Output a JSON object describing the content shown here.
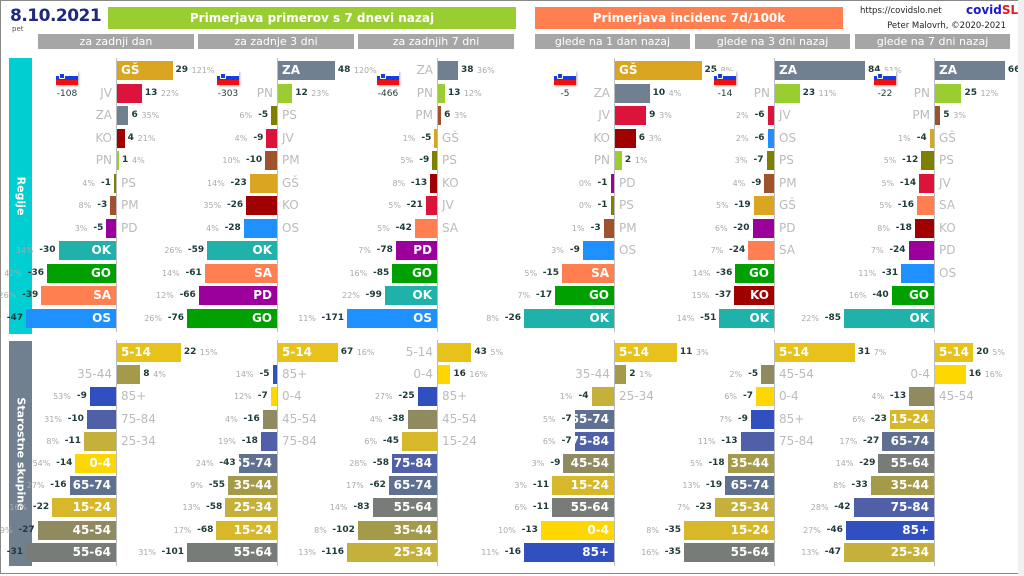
{
  "header": {
    "date": "8.10.2021",
    "weekday": "pet",
    "banner_cases": "Primerjava primerov s 7 dnevi nazaj",
    "banner_incidence": "Primerjava incidenc 7d/100k",
    "source_url": "https://covidslo.net",
    "brand_a": "covid",
    "brand_b": "SLO",
    "author": "Peter Malovrh, ©2020-2021"
  },
  "subheaders": [
    "za zadnji dan",
    "za zadnje 3 dni",
    "za zadnjih 7 dni",
    "glede na 1 dan nazaj",
    "glede na 3 dni nazaj",
    "glede na 7 dni nazaj"
  ],
  "sections": {
    "regions": "Regije",
    "ages": "Starostne skupine"
  },
  "colors": {
    "GŠ": "#daa520",
    "JV": "#dc143c",
    "ZA": "#708090",
    "KO": "#a00000",
    "PN": "#9acd32",
    "PS": "#808000",
    "PM": "#a0522d",
    "PD": "#9c009c",
    "OK": "#20b2aa",
    "GO": "#00a000",
    "SA": "#ff7f50",
    "OS": "#1e90ff",
    "5-14": "#e6c21a",
    "35-44": "#a39a4a",
    "85+": "#3050c0",
    "75-84": "#5060a8",
    "25-34": "#c4b03a",
    "0-4": "#ffd700",
    "65-74": "#607090",
    "15-24": "#d6b82a",
    "45-54": "#908a60",
    "55-64": "#787c78"
  },
  "chart_data": [
    {
      "type": "bar",
      "title": "Regije — za zadnji dan",
      "total": -108,
      "categories": [
        "GŠ",
        "JV",
        "ZA",
        "KO",
        "PN",
        "PS",
        "PM",
        "PD",
        "OK",
        "GO",
        "SA",
        "OS"
      ],
      "values": [
        29,
        13,
        6,
        4,
        1,
        -1,
        -3,
        -5,
        -30,
        -36,
        -39,
        -47
      ],
      "pct": [
        "121%",
        "22%",
        "35%",
        "21%",
        "4%",
        "4%",
        "8%",
        "3%",
        "34%",
        "42%",
        "26%",
        "16%"
      ],
      "scale": 47
    },
    {
      "type": "bar",
      "title": "Regije — za zadnje 3 dni",
      "total": -303,
      "categories": [
        "ZA",
        "PN",
        "PS",
        "JV",
        "PM",
        "GŠ",
        "KO",
        "OS",
        "OK",
        "SA",
        "PD",
        "GO"
      ],
      "values": [
        48,
        12,
        -5,
        -9,
        -10,
        -23,
        -26,
        -28,
        -59,
        -61,
        -66,
        -76
      ],
      "pct": [
        "120%",
        "23%",
        "6%",
        "4%",
        "10%",
        "14%",
        "35%",
        "4%",
        "26%",
        "14%",
        "12%",
        "26%"
      ],
      "scale": 76
    },
    {
      "type": "bar",
      "title": "Regije — za zadnjih 7 dni",
      "total": -466,
      "categories": [
        "ZA",
        "PN",
        "PM",
        "GŠ",
        "PS",
        "KO",
        "JV",
        "SA",
        "PD",
        "GO",
        "OK",
        "OS"
      ],
      "values": [
        38,
        13,
        6,
        -5,
        -9,
        -13,
        -21,
        -42,
        -78,
        -85,
        -99,
        -171
      ],
      "pct": [
        "36%",
        "12%",
        "3%",
        "1%",
        "5%",
        "8%",
        "5%",
        "5%",
        "7%",
        "16%",
        "22%",
        "11%"
      ],
      "scale": 171
    },
    {
      "type": "bar",
      "title": "Regije — glede na 1 dan nazaj",
      "total": -5,
      "categories": [
        "GŠ",
        "ZA",
        "JV",
        "KO",
        "PN",
        "PD",
        "PS",
        "PM",
        "OS",
        "SA",
        "GO",
        "OK"
      ],
      "values": [
        25,
        10,
        9,
        6,
        2,
        -1,
        -1,
        -3,
        -9,
        -15,
        -17,
        -26
      ],
      "pct": [
        "8%",
        "4%",
        "3%",
        "3%",
        "1%",
        "0%",
        "0%",
        "1%",
        "3%",
        "5%",
        "7%",
        "8%"
      ],
      "scale": 26
    },
    {
      "type": "bar",
      "title": "Regije — glede na 3 dni nazaj",
      "total": -14,
      "categories": [
        "ZA",
        "PN",
        "JV",
        "OS",
        "PS",
        "PM",
        "GŠ",
        "PD",
        "SA",
        "GO",
        "KO",
        "OK"
      ],
      "values": [
        84,
        23,
        -6,
        -6,
        -7,
        -9,
        -19,
        -20,
        -24,
        -36,
        -37,
        -51
      ],
      "pct": [
        "51%",
        "11%",
        "2%",
        "2%",
        "3%",
        "4%",
        "5%",
        "6%",
        "7%",
        "14%",
        "15%",
        "14%"
      ],
      "scale": 84
    },
    {
      "type": "bar",
      "title": "Regije — glede na 7 dni nazaj",
      "total": -22,
      "categories": [
        "ZA",
        "PN",
        "PM",
        "GŠ",
        "PS",
        "JV",
        "SA",
        "KO",
        "PD",
        "OS",
        "GO",
        "OK"
      ],
      "values": [
        66,
        25,
        5,
        -4,
        -12,
        -14,
        -16,
        -18,
        -24,
        -31,
        -40,
        -85
      ],
      "pct": [
        "36%",
        "12%",
        "3%",
        "1%",
        "5%",
        "5%",
        "5%",
        "8%",
        "7%",
        "11%",
        "16%",
        "22%"
      ],
      "scale": 85
    },
    {
      "type": "bar",
      "title": "Starostne skupine — za zadnji dan",
      "categories": [
        "5-14",
        "35-44",
        "85+",
        "75-84",
        "25-34",
        "0-4",
        "65-74",
        "15-24",
        "45-54",
        "55-64"
      ],
      "values": [
        22,
        8,
        -9,
        -10,
        -11,
        -14,
        -16,
        -22,
        -27,
        -31
      ],
      "pct": [
        "15%",
        "4%",
        "53%",
        "31%",
        "8%",
        "54%",
        "27%",
        "16%",
        "19%",
        "27%"
      ],
      "scale": 31
    },
    {
      "type": "bar",
      "title": "Starostne skupine — za zadnje 3 dni",
      "categories": [
        "5-14",
        "85+",
        "0-4",
        "45-54",
        "75-84",
        "65-74",
        "35-44",
        "25-34",
        "15-24",
        "55-64"
      ],
      "values": [
        67,
        -5,
        -7,
        -16,
        -18,
        -43,
        -55,
        -58,
        -68,
        -101
      ],
      "pct": [
        "16%",
        "14%",
        "12%",
        "4%",
        "19%",
        "24%",
        "9%",
        "13%",
        "17%",
        "31%"
      ],
      "scale": 101
    },
    {
      "type": "bar",
      "title": "Starostne skupine — za zadnjih 7 dni",
      "categories": [
        "5-14",
        "0-4",
        "85+",
        "45-54",
        "15-24",
        "75-84",
        "65-74",
        "55-64",
        "35-44",
        "25-34"
      ],
      "values": [
        43,
        16,
        -25,
        -38,
        -45,
        -58,
        -62,
        -83,
        -102,
        -116
      ],
      "pct": [
        "5%",
        "16%",
        "27%",
        "4%",
        "6%",
        "28%",
        "17%",
        "14%",
        "8%",
        "13%"
      ],
      "scale": 116
    },
    {
      "type": "bar",
      "title": "Starostne skupine — glede na 1 dan nazaj",
      "categories": [
        "5-14",
        "35-44",
        "25-34",
        "65-74",
        "75-84",
        "45-54",
        "15-24",
        "55-64",
        "0-4",
        "85+"
      ],
      "values": [
        11,
        2,
        -4,
        -7,
        -7,
        -9,
        -11,
        -11,
        -13,
        -16
      ],
      "pct": [
        "3%",
        "1%",
        "1%",
        "5%",
        "6%",
        "3%",
        "3%",
        "6%",
        "10%",
        "11%"
      ],
      "scale": 16
    },
    {
      "type": "bar",
      "title": "Starostne skupine — glede na 3 dni nazaj",
      "categories": [
        "5-14",
        "45-54",
        "0-4",
        "85+",
        "75-84",
        "35-44",
        "65-74",
        "25-34",
        "15-24",
        "55-64"
      ],
      "values": [
        31,
        -5,
        -7,
        -9,
        -13,
        -18,
        -19,
        -23,
        -35,
        -35
      ],
      "pct": [
        "7%",
        "2%",
        "6%",
        "7%",
        "11%",
        "5%",
        "13%",
        "7%",
        "8%",
        "16%"
      ],
      "scale": 35
    },
    {
      "type": "bar",
      "title": "Starostne skupine — glede na 7 dni nazaj",
      "categories": [
        "5-14",
        "0-4",
        "45-54",
        "15-24",
        "65-74",
        "55-64",
        "35-44",
        "75-84",
        "85+",
        "25-34"
      ],
      "values": [
        20,
        16,
        -13,
        -23,
        -27,
        -29,
        -33,
        -42,
        -46,
        -47
      ],
      "pct": [
        "5%",
        "16%",
        "4%",
        "6%",
        "17%",
        "14%",
        "8%",
        "28%",
        "27%",
        "13%"
      ],
      "scale": 47
    }
  ]
}
